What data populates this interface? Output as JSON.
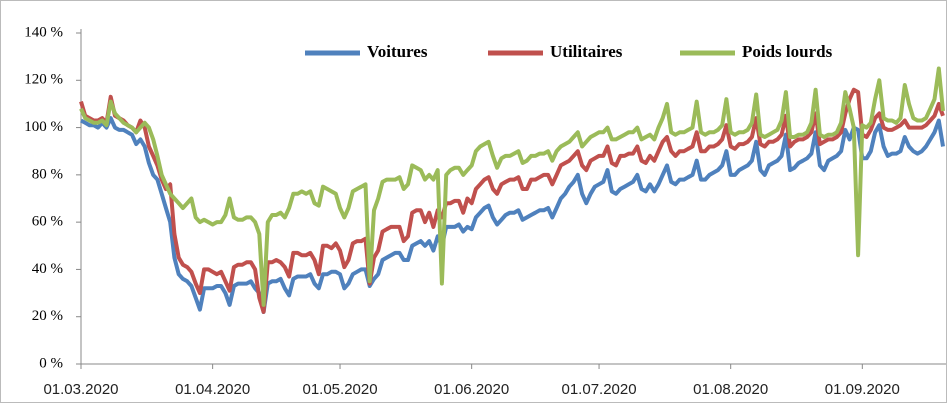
{
  "chart_data": {
    "type": "line",
    "x": [
      "01.03.2020",
      "02.03.2020",
      "03.03.2020",
      "04.03.2020",
      "05.03.2020",
      "06.03.2020",
      "07.03.2020",
      "08.03.2020",
      "09.03.2020",
      "10.03.2020",
      "11.03.2020",
      "12.03.2020",
      "13.03.2020",
      "14.03.2020",
      "15.03.2020",
      "16.03.2020",
      "17.03.2020",
      "18.03.2020",
      "19.03.2020",
      "20.03.2020",
      "21.03.2020",
      "22.03.2020",
      "23.03.2020",
      "24.03.2020",
      "25.03.2020",
      "26.03.2020",
      "27.03.2020",
      "28.03.2020",
      "29.03.2020",
      "30.03.2020",
      "31.03.2020",
      "01.04.2020",
      "02.04.2020",
      "03.04.2020",
      "04.04.2020",
      "05.04.2020",
      "06.04.2020",
      "07.04.2020",
      "08.04.2020",
      "09.04.2020",
      "10.04.2020",
      "11.04.2020",
      "12.04.2020",
      "13.04.2020",
      "14.04.2020",
      "15.04.2020",
      "16.04.2020",
      "17.04.2020",
      "18.04.2020",
      "19.04.2020",
      "20.04.2020",
      "21.04.2020",
      "22.04.2020",
      "23.04.2020",
      "24.04.2020",
      "25.04.2020",
      "26.04.2020",
      "27.04.2020",
      "28.04.2020",
      "29.04.2020",
      "30.04.2020",
      "01.05.2020",
      "02.05.2020",
      "03.05.2020",
      "04.05.2020",
      "05.05.2020",
      "06.05.2020",
      "07.05.2020",
      "08.05.2020",
      "09.05.2020",
      "10.05.2020",
      "11.05.2020",
      "12.05.2020",
      "13.05.2020",
      "14.05.2020",
      "15.05.2020",
      "16.05.2020",
      "17.05.2020",
      "18.05.2020",
      "19.05.2020",
      "20.05.2020",
      "21.05.2020",
      "22.05.2020",
      "23.05.2020",
      "24.05.2020",
      "25.05.2020",
      "26.05.2020",
      "27.05.2020",
      "28.05.2020",
      "29.05.2020",
      "30.05.2020",
      "31.05.2020",
      "01.06.2020",
      "02.06.2020",
      "03.06.2020",
      "04.06.2020",
      "05.06.2020",
      "06.06.2020",
      "07.06.2020",
      "08.06.2020",
      "09.06.2020",
      "10.06.2020",
      "11.06.2020",
      "12.06.2020",
      "13.06.2020",
      "14.06.2020",
      "15.06.2020",
      "16.06.2020",
      "17.06.2020",
      "18.06.2020",
      "19.06.2020",
      "20.06.2020",
      "21.06.2020",
      "22.06.2020",
      "23.06.2020",
      "24.06.2020",
      "25.06.2020",
      "26.06.2020",
      "27.06.2020",
      "28.06.2020",
      "29.06.2020",
      "30.06.2020",
      "01.07.2020",
      "02.07.2020",
      "03.07.2020",
      "04.07.2020",
      "05.07.2020",
      "06.07.2020",
      "07.07.2020",
      "08.07.2020",
      "09.07.2020",
      "10.07.2020",
      "11.07.2020",
      "12.07.2020",
      "13.07.2020",
      "14.07.2020",
      "15.07.2020",
      "16.07.2020",
      "17.07.2020",
      "18.07.2020",
      "19.07.2020",
      "20.07.2020",
      "21.07.2020",
      "22.07.2020",
      "23.07.2020",
      "24.07.2020",
      "25.07.2020",
      "26.07.2020",
      "27.07.2020",
      "28.07.2020",
      "29.07.2020",
      "30.07.2020",
      "31.07.2020",
      "01.08.2020",
      "02.08.2020",
      "03.08.2020",
      "04.08.2020",
      "05.08.2020",
      "06.08.2020",
      "07.08.2020",
      "08.08.2020",
      "09.08.2020",
      "10.08.2020",
      "11.08.2020",
      "12.08.2020",
      "13.08.2020",
      "14.08.2020",
      "15.08.2020",
      "16.08.2020",
      "17.08.2020",
      "18.08.2020",
      "19.08.2020",
      "20.08.2020",
      "21.08.2020",
      "22.08.2020",
      "23.08.2020",
      "24.08.2020",
      "25.08.2020",
      "26.08.2020",
      "27.08.2020",
      "28.08.2020",
      "29.08.2020",
      "30.08.2020",
      "31.08.2020",
      "01.09.2020",
      "02.09.2020",
      "03.09.2020",
      "04.09.2020",
      "05.09.2020",
      "06.09.2020",
      "07.09.2020",
      "08.09.2020",
      "09.09.2020",
      "10.09.2020",
      "11.09.2020",
      "12.09.2020",
      "13.09.2020",
      "14.09.2020",
      "15.09.2020",
      "16.09.2020",
      "17.09.2020",
      "18.09.2020",
      "19.09.2020",
      "20.09.2020"
    ],
    "series": [
      {
        "name": "Voitures",
        "color": "#4f81bd",
        "values": [
          103,
          102,
          101,
          101,
          100,
          102,
          100,
          104,
          100,
          99,
          99,
          98,
          97,
          93,
          95,
          92,
          85,
          80,
          78,
          72,
          66,
          60,
          45,
          38,
          36,
          35,
          33,
          28,
          23,
          32,
          32,
          32,
          33,
          33,
          30,
          25,
          33,
          34,
          34,
          34,
          35,
          32,
          30,
          22,
          34,
          35,
          35,
          36,
          32,
          29,
          36,
          37,
          37,
          37,
          38,
          34,
          32,
          38,
          38,
          39,
          39,
          38,
          32,
          34,
          38,
          39,
          40,
          40,
          33,
          36,
          38,
          44,
          45,
          46,
          47,
          47,
          44,
          44,
          50,
          51,
          52,
          50,
          52,
          48,
          54,
          50,
          58,
          58,
          58,
          59,
          56,
          58,
          57,
          62,
          64,
          66,
          67,
          62,
          59,
          61,
          63,
          64,
          64,
          65,
          61,
          62,
          63,
          64,
          65,
          65,
          66,
          62,
          66,
          70,
          72,
          75,
          77,
          80,
          72,
          68,
          72,
          75,
          76,
          77,
          82,
          73,
          72,
          74,
          75,
          76,
          77,
          80,
          74,
          73,
          76,
          73,
          76,
          80,
          84,
          77,
          76,
          78,
          78,
          79,
          80,
          86,
          78,
          78,
          80,
          81,
          82,
          84,
          90,
          80,
          80,
          82,
          83,
          84,
          86,
          94,
          82,
          80,
          84,
          85,
          86,
          88,
          97,
          82,
          83,
          85,
          86,
          87,
          89,
          98,
          84,
          82,
          86,
          87,
          88,
          90,
          99,
          95,
          100,
          99,
          87,
          87,
          90,
          98,
          101,
          92,
          88,
          89,
          89,
          90,
          96,
          92,
          90,
          89,
          90,
          92,
          95,
          98,
          103,
          92
        ]
      },
      {
        "name": "Utilitaires",
        "color": "#c0504d",
        "values": [
          111,
          105,
          104,
          103,
          103,
          104,
          102,
          113,
          105,
          104,
          103,
          101,
          100,
          98,
          103,
          100,
          92,
          88,
          84,
          78,
          74,
          76,
          55,
          45,
          42,
          41,
          39,
          34,
          30,
          40,
          40,
          39,
          38,
          39,
          35,
          31,
          41,
          42,
          42,
          43,
          43,
          40,
          28,
          22,
          43,
          43,
          44,
          43,
          41,
          37,
          47,
          47,
          46,
          46,
          47,
          44,
          38,
          50,
          50,
          49,
          51,
          48,
          41,
          44,
          51,
          52,
          52,
          53,
          34,
          45,
          48,
          56,
          57,
          58,
          58,
          58,
          52,
          54,
          64,
          65,
          65,
          60,
          64,
          58,
          65,
          62,
          68,
          68,
          69,
          69,
          64,
          70,
          68,
          74,
          76,
          78,
          79,
          74,
          72,
          76,
          77,
          78,
          78,
          79,
          74,
          74,
          78,
          78,
          79,
          80,
          80,
          76,
          80,
          84,
          85,
          86,
          88,
          90,
          84,
          82,
          86,
          87,
          88,
          88,
          92,
          85,
          84,
          88,
          88,
          89,
          89,
          92,
          86,
          85,
          88,
          86,
          90,
          94,
          96,
          90,
          88,
          90,
          90,
          91,
          92,
          98,
          90,
          90,
          92,
          92,
          93,
          95,
          101,
          92,
          91,
          93,
          93,
          94,
          96,
          104,
          93,
          92,
          94,
          94,
          95,
          97,
          105,
          92,
          94,
          95,
          95,
          96,
          98,
          106,
          93,
          94,
          95,
          95,
          96,
          98,
          106,
          112,
          116,
          115,
          97,
          96,
          99,
          104,
          106,
          100,
          99,
          99,
          100,
          101,
          103,
          100,
          100,
          100,
          100,
          101,
          103,
          105,
          110,
          105
        ]
      },
      {
        "name": "Poids lourds",
        "color": "#9bbb59",
        "values": [
          108,
          104,
          103,
          102,
          102,
          103,
          101,
          111,
          106,
          104,
          102,
          101,
          100,
          98,
          100,
          102,
          100,
          95,
          88,
          80,
          76,
          72,
          70,
          68,
          66,
          68,
          70,
          62,
          60,
          61,
          60,
          59,
          60,
          60,
          63,
          70,
          62,
          61,
          61,
          62,
          62,
          60,
          55,
          25,
          60,
          63,
          63,
          64,
          62,
          66,
          72,
          72,
          73,
          72,
          73,
          68,
          67,
          75,
          74,
          73,
          72,
          66,
          62,
          66,
          73,
          74,
          75,
          76,
          35,
          65,
          70,
          77,
          78,
          78,
          78,
          79,
          74,
          76,
          84,
          83,
          82,
          78,
          80,
          78,
          82,
          34,
          80,
          82,
          83,
          83,
          80,
          82,
          84,
          90,
          92,
          93,
          94,
          88,
          83,
          87,
          88,
          88,
          89,
          90,
          85,
          86,
          88,
          88,
          89,
          89,
          90,
          86,
          90,
          92,
          93,
          94,
          96,
          98,
          92,
          94,
          96,
          97,
          98,
          98,
          100,
          95,
          95,
          96,
          97,
          98,
          98,
          100,
          95,
          96,
          97,
          95,
          100,
          104,
          110,
          98,
          97,
          98,
          98,
          99,
          100,
          111,
          98,
          97,
          98,
          98,
          99,
          101,
          112,
          98,
          97,
          98,
          98,
          99,
          102,
          114,
          97,
          96,
          97,
          98,
          99,
          103,
          115,
          96,
          96,
          97,
          97,
          98,
          102,
          116,
          97,
          96,
          97,
          97,
          98,
          102,
          115,
          108,
          100,
          46,
          101,
          100,
          102,
          112,
          120,
          104,
          103,
          103,
          102,
          104,
          118,
          110,
          104,
          103,
          103,
          104,
          108,
          112,
          125,
          107
        ]
      }
    ],
    "ylim": [
      0,
      140
    ],
    "yticks": [
      {
        "value": 0,
        "label": "0 %"
      },
      {
        "value": 20,
        "label": "20 %"
      },
      {
        "value": 40,
        "label": "40 %"
      },
      {
        "value": 60,
        "label": "60 %"
      },
      {
        "value": 80,
        "label": "80 %"
      },
      {
        "value": 100,
        "label": "100 %"
      },
      {
        "value": 120,
        "label": "120 %"
      },
      {
        "value": 140,
        "label": "140 %"
      }
    ],
    "xticks": [
      "01.03.2020",
      "01.04.2020",
      "01.05.2020",
      "01.06.2020",
      "01.07.2020",
      "01.08.2020",
      "01.09.2020"
    ],
    "legend": "top"
  }
}
